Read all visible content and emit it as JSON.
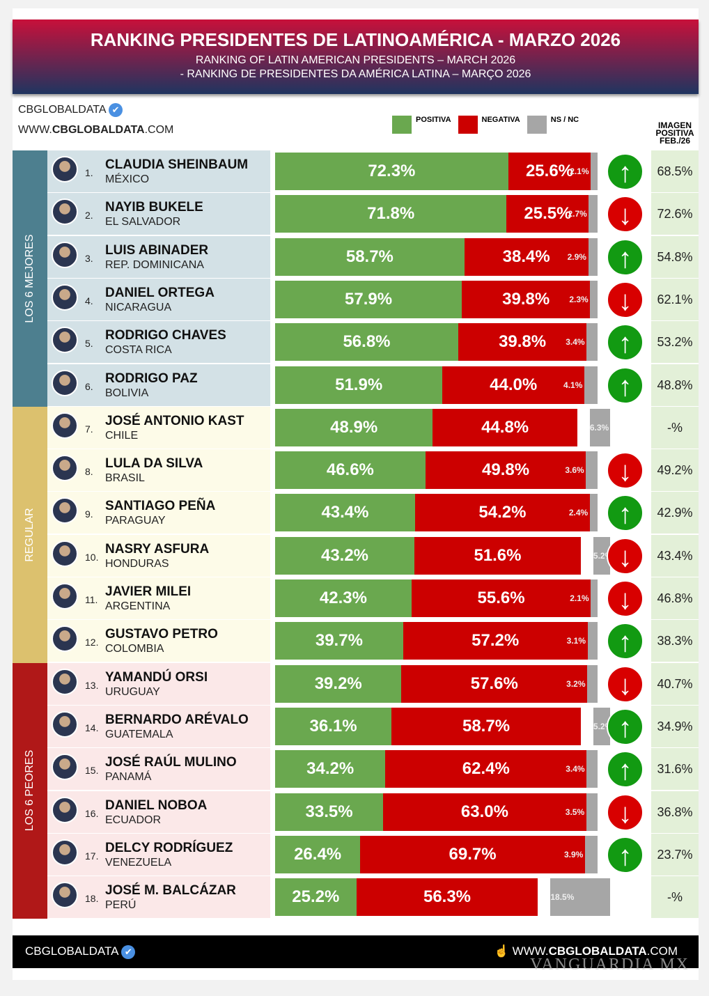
{
  "header": {
    "title": "RANKING PRESIDENTES DE LATINOAMÉRICA - MARZO 2026",
    "subtitle_en": "RANKING OF LATIN AMERICAN PRESIDENTS – MARCH 2026",
    "subtitle_pt": "- RANKING DE PRESIDENTES DA AMÉRICA LATINA – MARÇO 2026"
  },
  "brand": {
    "name": "CBGLOBALDATA",
    "url_pre": "WWW.",
    "url_bold": "CBGLOBALDATA",
    "url_post": ".COM"
  },
  "legend": [
    {
      "label": "POSITIVA",
      "color": "#6aa84f"
    },
    {
      "label": "NEGATIVA",
      "color": "#cc0000"
    },
    {
      "label": "NS / NC",
      "color": "#a6a6a6"
    }
  ],
  "prev_header": "IMAGEN POSITIVA FEB./26",
  "groups": [
    {
      "label": "LOS 6 MEJORES",
      "band": "#4d7f8f",
      "bg": "#d3e1e6"
    },
    {
      "label": "REGULAR",
      "band": "#dcc16e",
      "bg": "#fdfbe8"
    },
    {
      "label": "LOS 6 PEORES",
      "band": "#b01818",
      "bg": "#fbe8e8"
    }
  ],
  "chart_data": {
    "type": "bar",
    "stacked": true,
    "orientation": "horizontal",
    "series_names": [
      "POSITIVA",
      "NEGATIVA",
      "NS / NC"
    ],
    "rows": [
      {
        "rank": "1.",
        "name": "CLAUDIA SHEINBAUM",
        "country": "MÉXICO",
        "pos": 72.3,
        "neg": 25.6,
        "ns": 2.1,
        "trend": "up",
        "prev": "68.5%"
      },
      {
        "rank": "2.",
        "name": "NAYIB BUKELE",
        "country": "EL SALVADOR",
        "pos": 71.8,
        "neg": 25.5,
        "ns": 2.7,
        "trend": "down",
        "prev": "72.6%"
      },
      {
        "rank": "3.",
        "name": "LUIS ABINADER",
        "country": "REP. DOMINICANA",
        "pos": 58.7,
        "neg": 38.4,
        "ns": 2.9,
        "trend": "up",
        "prev": "54.8%"
      },
      {
        "rank": "4.",
        "name": "DANIEL ORTEGA",
        "country": "NICARAGUA",
        "pos": 57.9,
        "neg": 39.8,
        "ns": 2.3,
        "trend": "down",
        "prev": "62.1%"
      },
      {
        "rank": "5.",
        "name": "RODRIGO CHAVES",
        "country": "COSTA RICA",
        "pos": 56.8,
        "neg": 39.8,
        "ns": 3.4,
        "trend": "up",
        "prev": "53.2%"
      },
      {
        "rank": "6.",
        "name": "RODRIGO PAZ",
        "country": "BOLIVIA",
        "pos": 51.9,
        "neg": 44.0,
        "ns": 4.1,
        "trend": "up",
        "prev": "48.8%"
      },
      {
        "rank": "7.",
        "name": "JOSÉ ANTONIO KAST",
        "country": "CHILE",
        "pos": 48.9,
        "neg": 44.8,
        "ns": 6.3,
        "trend": "",
        "prev": "-%"
      },
      {
        "rank": "8.",
        "name": "LULA DA SILVA",
        "country": "BRASIL",
        "pos": 46.6,
        "neg": 49.8,
        "ns": 3.6,
        "trend": "down",
        "prev": "49.2%"
      },
      {
        "rank": "9.",
        "name": "SANTIAGO PEÑA",
        "country": "PARAGUAY",
        "pos": 43.4,
        "neg": 54.2,
        "ns": 2.4,
        "trend": "up",
        "prev": "42.9%"
      },
      {
        "rank": "10.",
        "name": "NASRY ASFURA",
        "country": "HONDURAS",
        "pos": 43.2,
        "neg": 51.6,
        "ns": 5.2,
        "trend": "down",
        "prev": "43.4%"
      },
      {
        "rank": "11.",
        "name": "JAVIER MILEI",
        "country": "ARGENTINA",
        "pos": 42.3,
        "neg": 55.6,
        "ns": 2.1,
        "trend": "down",
        "prev": "46.8%"
      },
      {
        "rank": "12.",
        "name": "GUSTAVO PETRO",
        "country": "COLOMBIA",
        "pos": 39.7,
        "neg": 57.2,
        "ns": 3.1,
        "trend": "up",
        "prev": "38.3%"
      },
      {
        "rank": "13.",
        "name": "YAMANDÚ ORSI",
        "country": "URUGUAY",
        "pos": 39.2,
        "neg": 57.6,
        "ns": 3.2,
        "trend": "down",
        "prev": "40.7%"
      },
      {
        "rank": "14.",
        "name": "BERNARDO ARÉVALO",
        "country": "GUATEMALA",
        "pos": 36.1,
        "neg": 58.7,
        "ns": 5.2,
        "trend": "up",
        "prev": "34.9%"
      },
      {
        "rank": "15.",
        "name": "JOSÉ RAÚL MULINO",
        "country": "PANAMÁ",
        "pos": 34.2,
        "neg": 62.4,
        "ns": 3.4,
        "trend": "up",
        "prev": "31.6%"
      },
      {
        "rank": "16.",
        "name": "DANIEL NOBOA",
        "country": "ECUADOR",
        "pos": 33.5,
        "neg": 63.0,
        "ns": 3.5,
        "trend": "down",
        "prev": "36.8%"
      },
      {
        "rank": "17.",
        "name": "DELCY RODRÍGUEZ",
        "country": "VENEZUELA",
        "pos": 26.4,
        "neg": 69.7,
        "ns": 3.9,
        "trend": "up",
        "prev": "23.7%"
      },
      {
        "rank": "18.",
        "name": "JOSÉ M. BALCÁZAR",
        "country": "PERÚ",
        "pos": 25.2,
        "neg": 56.3,
        "ns": 18.5,
        "trend": "",
        "prev": "-%"
      }
    ]
  },
  "trend_colors": {
    "up": "#129a12",
    "down": "#d80000"
  },
  "footer": {
    "brand": "CBGLOBALDATA",
    "url_pre": "WWW.",
    "url_bold": "CBGLOBALDATA",
    "url_post": ".COM"
  },
  "watermark": "VANGUARDIA MX"
}
